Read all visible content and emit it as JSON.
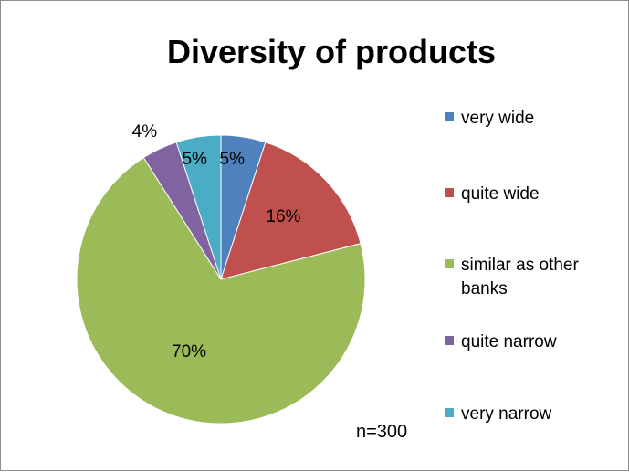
{
  "chart_data": {
    "type": "pie",
    "title": "Diversity of products",
    "slices": [
      {
        "name": "very wide",
        "value": 5,
        "label": "5%",
        "color": "#4F81BD"
      },
      {
        "name": "quite wide",
        "value": 16,
        "label": "16%",
        "color": "#C0504D"
      },
      {
        "name": "similar as other banks",
        "value": 70,
        "label": "70%",
        "color": "#9BBB59"
      },
      {
        "name": "quite narrow",
        "value": 4,
        "label": "4%",
        "color": "#8064A2"
      },
      {
        "name": "very narrow",
        "value": 5,
        "label": "5%",
        "color": "#4BACC6"
      }
    ],
    "legend": {
      "position": "right",
      "entries": [
        {
          "text_lines": [
            "very wide"
          ],
          "color": "#4F81BD"
        },
        {
          "text_lines": [
            "quite wide"
          ],
          "color": "#C0504D"
        },
        {
          "text_lines": [
            "similar as other",
            "banks"
          ],
          "color": "#9BBB59"
        },
        {
          "text_lines": [
            "quite narrow"
          ],
          "color": "#8064A2"
        },
        {
          "text_lines": [
            "very narrow"
          ],
          "color": "#4BACC6"
        }
      ]
    },
    "note": "n=300"
  }
}
